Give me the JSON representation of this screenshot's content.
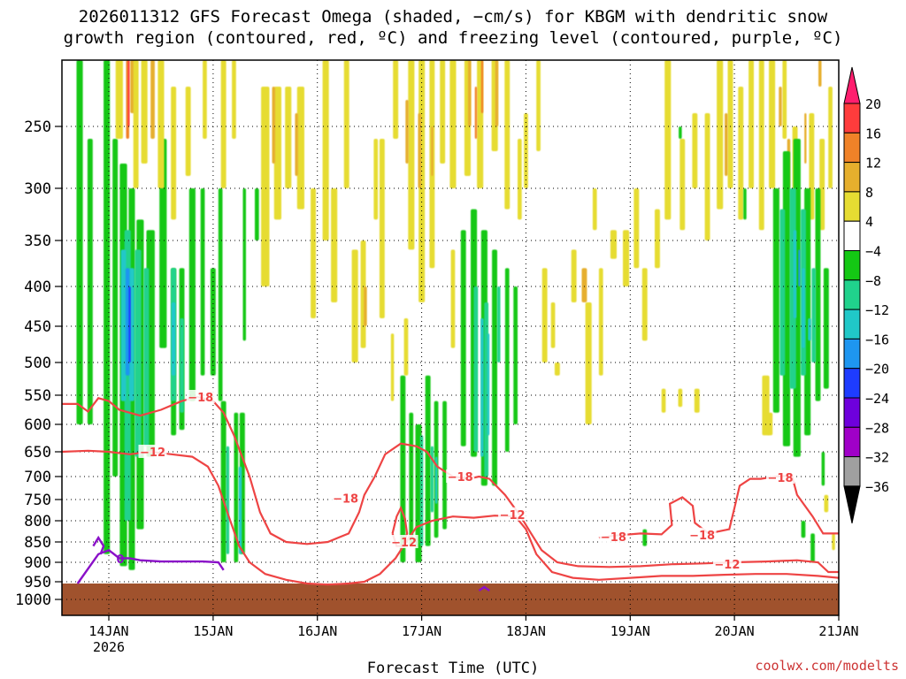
{
  "title_line1": "2026011312 GFS Forecast Omega (shaded, −cm/s) for KBGM with dendritic snow",
  "title_line2": "growth region (contoured, red, ºC) and freezing level (contoured, purple, ºC)",
  "credit": "coolwx.com/modelts",
  "chart_data": {
    "type": "heatmap",
    "title": "2026011312 GFS Forecast Omega (shaded, −cm/s) for KBGM with dendritic snow growth region (contoured, red, ºC) and freezing level (contoured, purple, ºC)",
    "xlabel": "Forecast Time (UTC)",
    "ylabel": "",
    "x_ticks": [
      "14JAN",
      "15JAN",
      "16JAN",
      "17JAN",
      "18JAN",
      "19JAN",
      "20JAN",
      "21JAN"
    ],
    "x_year_label": "2026",
    "y_ticks": [
      "250",
      "300",
      "350",
      "400",
      "450",
      "500",
      "550",
      "600",
      "650",
      "700",
      "750",
      "800",
      "850",
      "900",
      "950",
      "1000"
    ],
    "y_values": [
      250,
      300,
      350,
      400,
      450,
      500,
      550,
      600,
      650,
      700,
      750,
      800,
      850,
      900,
      950,
      1000
    ],
    "y_range_hpa": [
      200,
      1015
    ],
    "x_range_days": [
      13.55,
      21.0
    ],
    "grid": "dotted",
    "colorbar_labels": [
      "20",
      "16",
      "12",
      "8",
      "4",
      "−4",
      "−8",
      "−12",
      "−16",
      "−20",
      "−24",
      "−28",
      "−32",
      "−36"
    ],
    "colorbar_colors": [
      "#ff1e6e",
      "#ff3c3c",
      "#f08228",
      "#e6af2d",
      "#e6dc32",
      "#ffffff",
      "#14c814",
      "#20d28c",
      "#20c8c8",
      "#1e96f0",
      "#1e3cff",
      "#6e00dc",
      "#a000c8",
      "#a0a0a0",
      "#000000"
    ],
    "contour_label_color": "#ee4444",
    "freezing_color": "#8a10c8",
    "ground_color": "#a0522d",
    "red_contour_labels": [
      {
        "text": "−18",
        "t": 14.88,
        "p": 553
      },
      {
        "text": "−12",
        "t": 14.42,
        "p": 650
      },
      {
        "text": "−18",
        "t": 16.27,
        "p": 747
      },
      {
        "text": "−18",
        "t": 17.37,
        "p": 700
      },
      {
        "text": "−12",
        "t": 17.87,
        "p": 785
      },
      {
        "text": "−12",
        "t": 16.83,
        "p": 850
      },
      {
        "text": "−18",
        "t": 18.84,
        "p": 838
      },
      {
        "text": "−18",
        "t": 19.69,
        "p": 833
      },
      {
        "text": "−12",
        "t": 19.93,
        "p": 905
      },
      {
        "text": "−18",
        "t": 20.44,
        "p": 702
      }
    ],
    "purple_contour_labels": [
      {
        "text": "0",
        "t": 14.11,
        "p": 891
      }
    ]
  }
}
